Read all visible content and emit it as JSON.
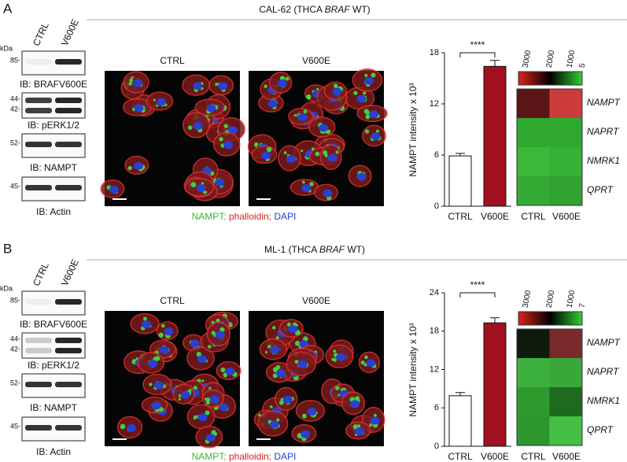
{
  "panels": [
    {
      "label": "A",
      "title": [
        "CAL-62 (THCA ",
        "BRAF",
        " WT)"
      ],
      "blot": {
        "kda": "kDa",
        "lanes": [
          "CTRL",
          "V600E"
        ],
        "rows": [
          {
            "markers": [
              "85-"
            ],
            "label": "IB: BRAFV600E"
          },
          {
            "markers": [
              "44-",
              "42-"
            ],
            "label": "IB: pERK1/2"
          },
          {
            "markers": [
              "52-"
            ],
            "label": "IB: NAMPT"
          },
          {
            "markers": [
              "45-"
            ],
            "label": "IB: Actin"
          }
        ]
      },
      "images": {
        "labels": [
          "CTRL",
          "V600E"
        ],
        "caption": [
          {
            "text": "NAMPT;",
            "color": "#2fbf2f"
          },
          {
            "text": " phalloidin;",
            "color": "#e02020"
          },
          {
            "text": " DAPI",
            "color": "#2040e0"
          }
        ]
      },
      "bar_chart": {
        "type": "bar",
        "ylabel": "NAMPT intensity x 10³",
        "categories": [
          "CTRL",
          "V600E"
        ],
        "values": [
          5.9,
          16.4
        ],
        "errors": [
          0.3,
          0.7
        ],
        "colors": [
          "#ffffff",
          "#a0101e"
        ],
        "ylim": [
          0,
          18
        ],
        "yticks": [
          0,
          6,
          12,
          18
        ],
        "significance": "****"
      },
      "heatmap": {
        "scale_ticks": [
          "3000",
          "2000",
          "1000",
          "5"
        ],
        "rows": [
          "NAMPT",
          "NAPRT",
          "NMRK1",
          "QPRT"
        ],
        "columns": [
          "CTRL",
          "V600E"
        ],
        "cell_colors": [
          [
            "#5a1616",
            "#cc3c3c"
          ],
          [
            "#2fa82f",
            "#2fa82f"
          ],
          [
            "#3ab83a",
            "#34b034"
          ],
          [
            "#34aa34",
            "#30a230"
          ]
        ]
      }
    },
    {
      "label": "B",
      "title": [
        "ML-1 (THCA ",
        "BRAF",
        " WT)"
      ],
      "blot": {
        "kda": "kDa",
        "lanes": [
          "CTRL",
          "V600E"
        ],
        "rows": [
          {
            "markers": [
              "85-"
            ],
            "label": "IB: BRAFV600E"
          },
          {
            "markers": [
              "44-",
              "42-"
            ],
            "label": "IB: pERK1/2"
          },
          {
            "markers": [
              "52-"
            ],
            "label": "IB: NAMPT"
          },
          {
            "markers": [
              "45-"
            ],
            "label": "IB: Actin"
          }
        ]
      },
      "images": {
        "labels": [
          "CTRL",
          "V600E"
        ],
        "caption": [
          {
            "text": "NAMPT;",
            "color": "#2fbf2f"
          },
          {
            "text": " phalloidin;",
            "color": "#e02020"
          },
          {
            "text": " DAPI",
            "color": "#2040e0"
          }
        ]
      },
      "bar_chart": {
        "type": "bar",
        "ylabel": "NAMPT intensity x 10³",
        "categories": [
          "CTRL",
          "V600E"
        ],
        "values": [
          7.9,
          19.3
        ],
        "errors": [
          0.5,
          0.8
        ],
        "colors": [
          "#ffffff",
          "#a0101e"
        ],
        "ylim": [
          0,
          24
        ],
        "yticks": [
          0,
          6,
          12,
          18,
          24
        ],
        "significance": "****"
      },
      "heatmap": {
        "scale_ticks": [
          "3000",
          "2000",
          "1000",
          "7"
        ],
        "rows": [
          "NAMPT",
          "NAPRT",
          "NMRK1",
          "QPRT"
        ],
        "columns": [
          "CTRL",
          "V600E"
        ],
        "cell_colors": [
          [
            "#0e1a0e",
            "#7a2a2a"
          ],
          [
            "#3cb03c",
            "#38a838"
          ],
          [
            "#2e9a2e",
            "#1e6a1e"
          ],
          [
            "#2e962e",
            "#44c044"
          ]
        ]
      }
    }
  ]
}
